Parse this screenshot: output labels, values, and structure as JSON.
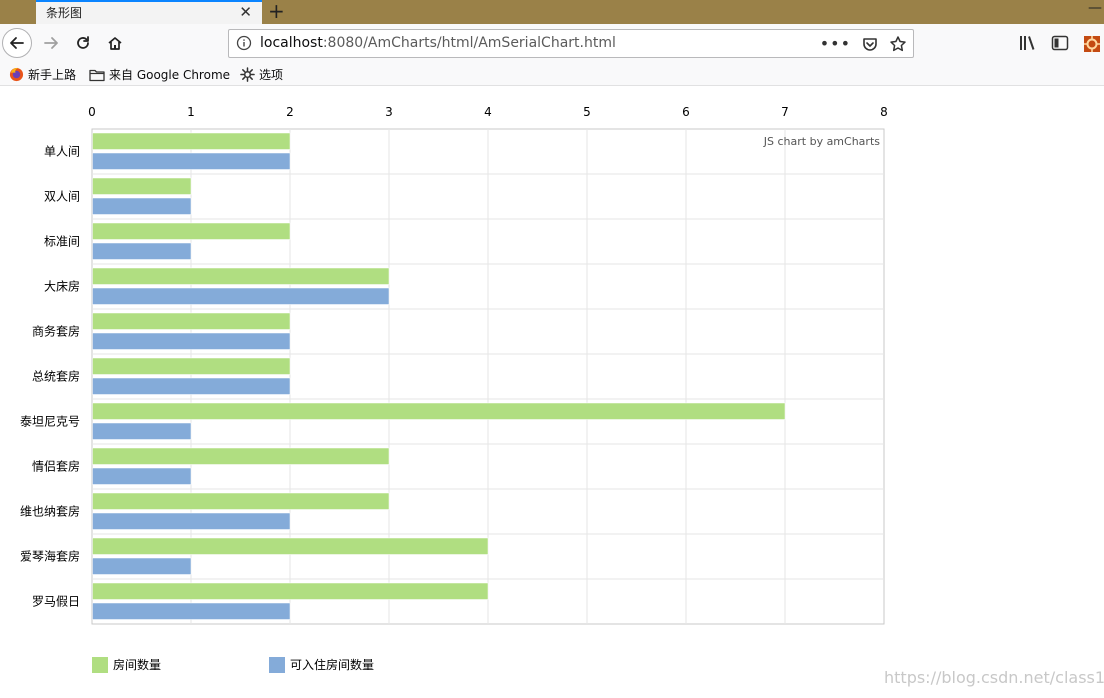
{
  "tab": {
    "title": "条形图"
  },
  "address": {
    "host": "localhost",
    "rest": ":8080/AmCharts/html/AmSerialChart.html"
  },
  "bookmarks": [
    {
      "label": "新手上路",
      "icon": "firefox-icon"
    },
    {
      "label": "来自 Google Chrome",
      "icon": "folder-icon"
    },
    {
      "label": "选项",
      "icon": "gear-icon"
    }
  ],
  "chart_data": {
    "type": "bar",
    "orientation": "horizontal",
    "categories": [
      "单人间",
      "双人间",
      "标准间",
      "大床房",
      "商务套房",
      "总统套房",
      "泰坦尼克号",
      "情侣套房",
      "维也纳套房",
      "爱琴海套房",
      "罗马假日"
    ],
    "series": [
      {
        "name": "房间数量",
        "color": "#b0de81",
        "values": [
          2,
          1,
          2,
          3,
          2,
          2,
          7,
          3,
          3,
          4,
          4
        ]
      },
      {
        "name": "可入住房间数量",
        "color": "#84abd9",
        "values": [
          2,
          1,
          1,
          3,
          2,
          2,
          1,
          1,
          2,
          1,
          2
        ]
      }
    ],
    "xlim": [
      0,
      8
    ],
    "ticks": [
      "0",
      "1",
      "2",
      "3",
      "4",
      "5",
      "6",
      "7",
      "8"
    ],
    "axis_position": "top",
    "grid": true,
    "legend": "bottom-left",
    "credit": "JS chart by amCharts"
  },
  "watermark": "https://blog.csdn.net/class157"
}
